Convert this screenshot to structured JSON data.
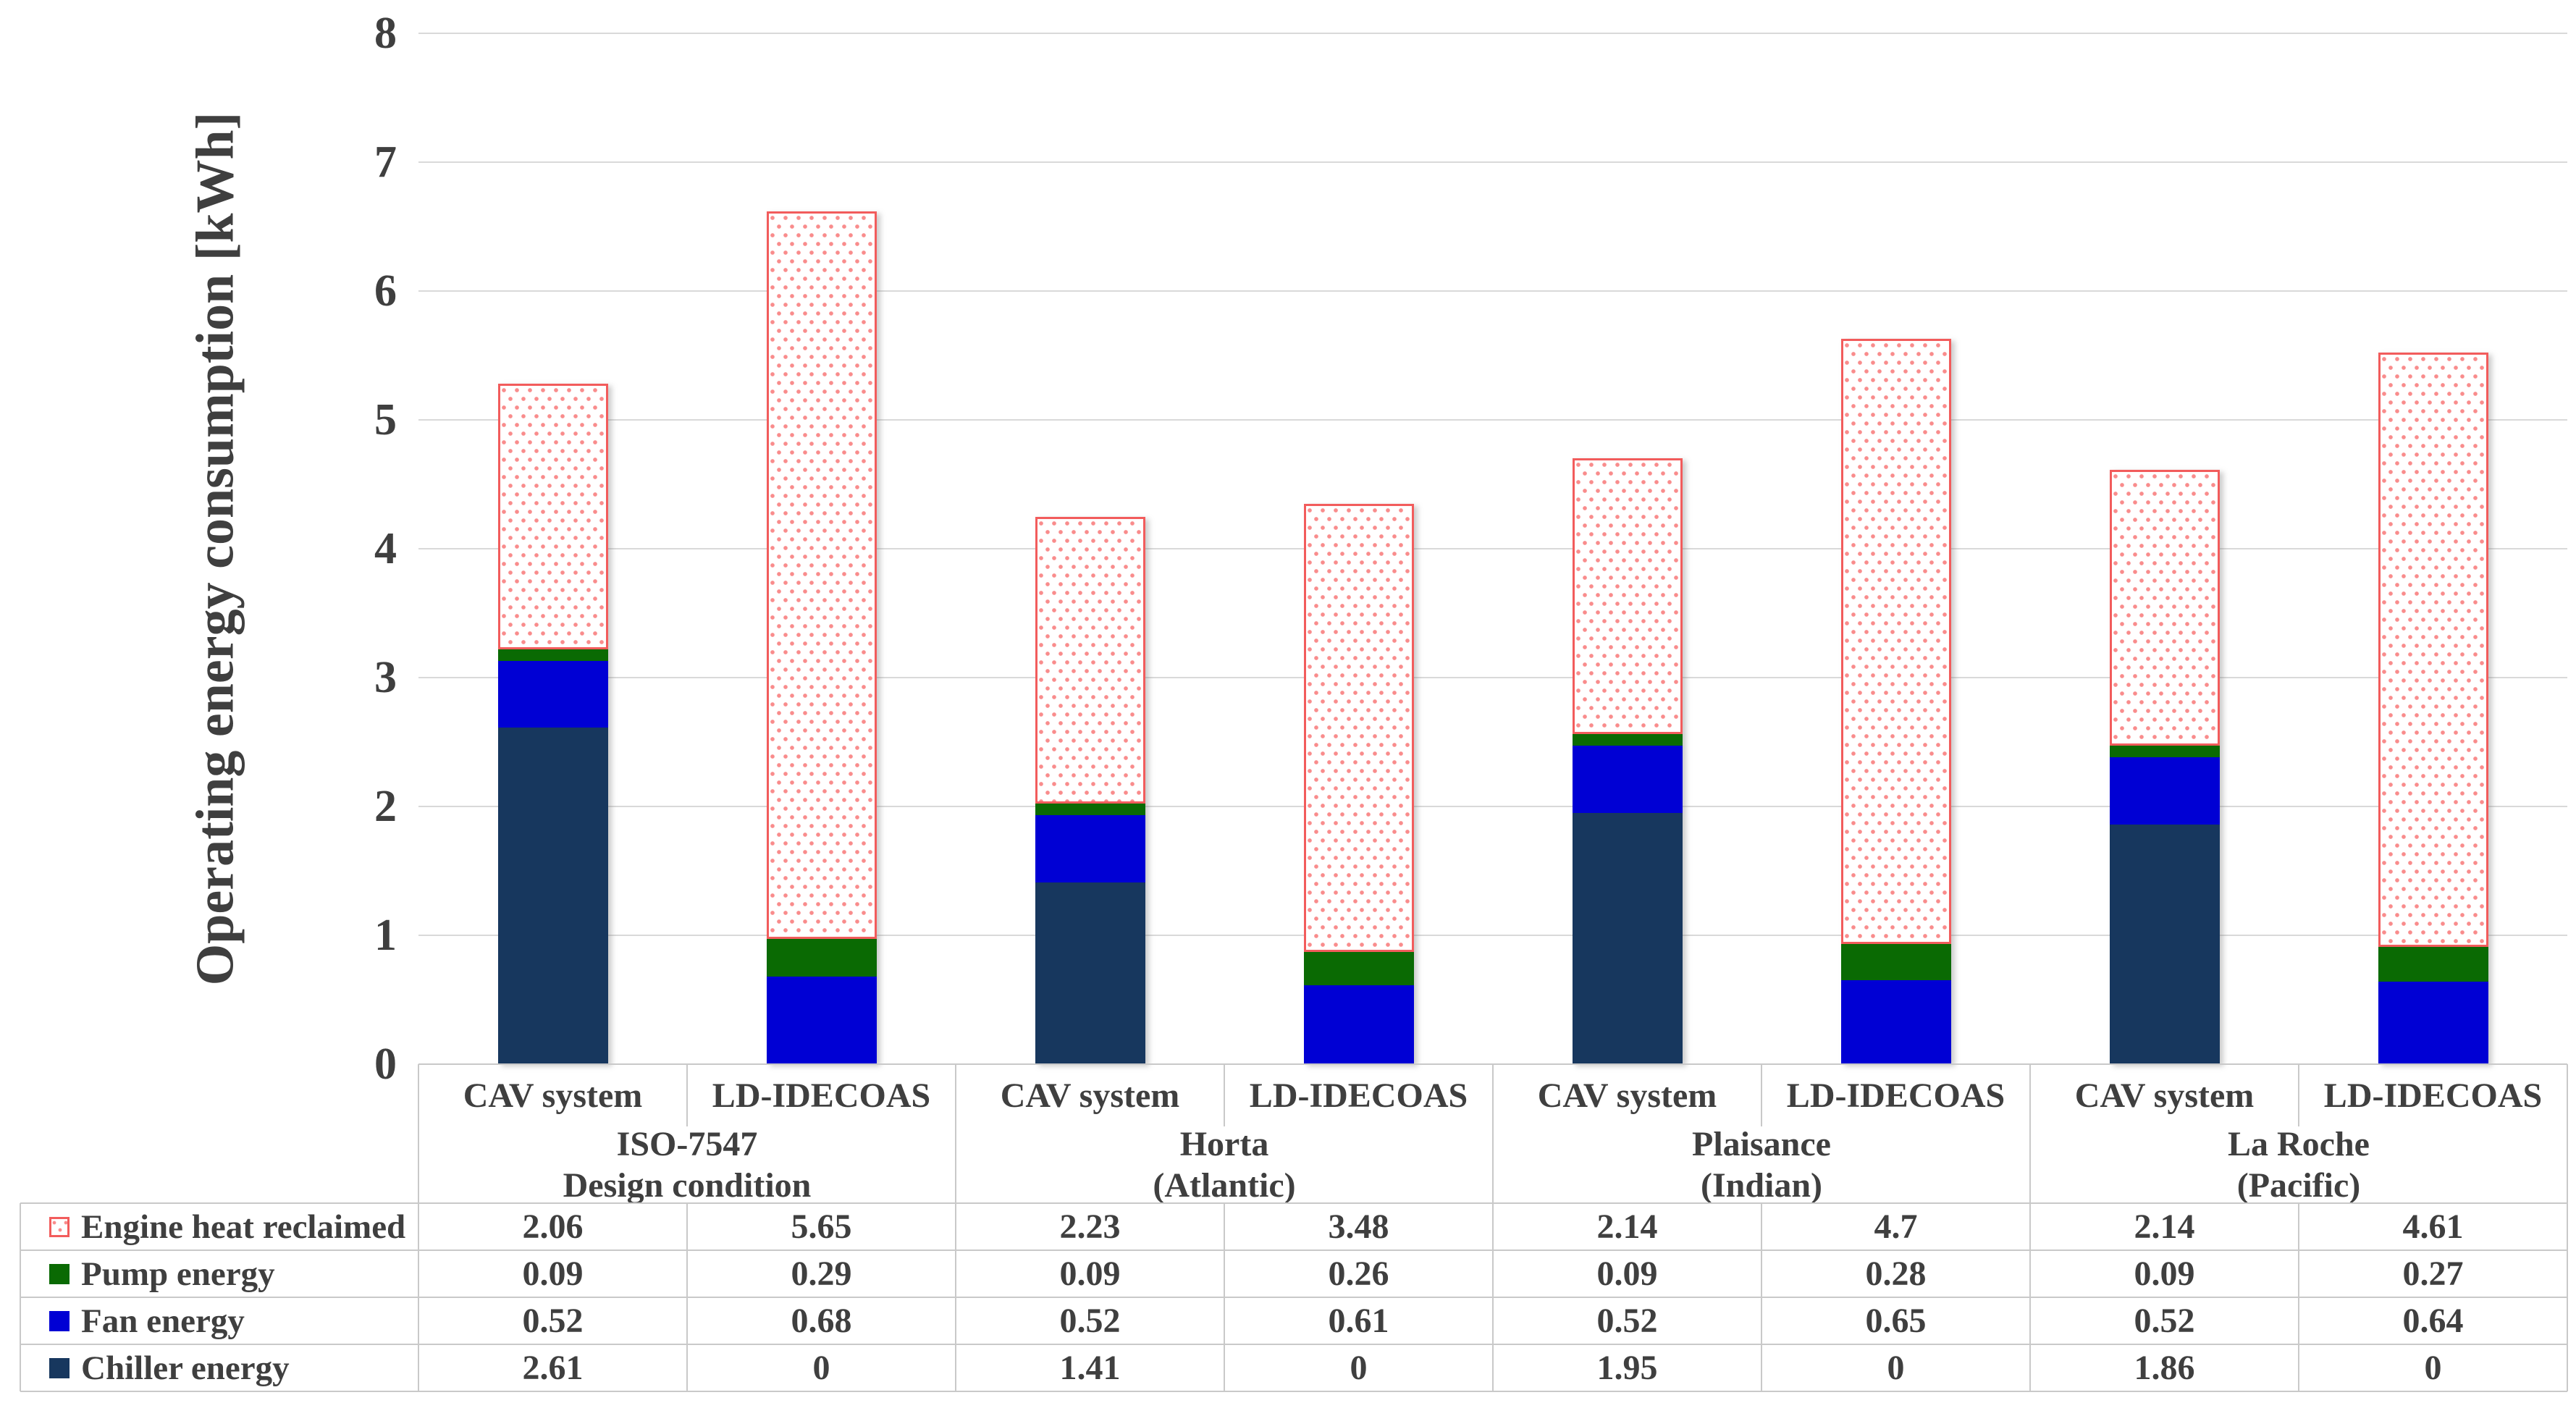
{
  "chart_data": {
    "type": "bar",
    "stacked": true,
    "title": "",
    "ylabel": "Operating energy consumption [kWh]",
    "xlabel": "",
    "ylim": [
      0,
      8
    ],
    "yticks": [
      0,
      1,
      2,
      3,
      4,
      5,
      6,
      7,
      8
    ],
    "grid": "horizontal",
    "legend_position": "data-table-left-column",
    "data_table_shown": true,
    "categories": [
      "CAV system",
      "LD-IDECOAS",
      "CAV system",
      "LD-IDECOAS",
      "CAV system",
      "LD-IDECOAS",
      "CAV system",
      "LD-IDECOAS"
    ],
    "groups": [
      {
        "lines": [
          "ISO-7547",
          "Design condition"
        ]
      },
      {
        "lines": [
          "Horta",
          "(Atlantic)"
        ]
      },
      {
        "lines": [
          "Plaisance",
          "(Indian)"
        ]
      },
      {
        "lines": [
          "La Roche",
          "(Pacific)"
        ]
      }
    ],
    "series": [
      {
        "name": "Engine heat reclaimed",
        "fill": "pattern-red-dots",
        "color": "#F25C5C",
        "dot_color": "#F98C8C",
        "values": [
          2.06,
          5.65,
          2.23,
          3.48,
          2.14,
          4.7,
          2.14,
          4.61
        ]
      },
      {
        "name": "Pump energy",
        "fill": "solid",
        "color": "#0A6A03",
        "values": [
          0.09,
          0.29,
          0.09,
          0.26,
          0.09,
          0.28,
          0.09,
          0.27
        ]
      },
      {
        "name": "Fan energy",
        "fill": "solid",
        "color": "#0000D4",
        "values": [
          0.52,
          0.68,
          0.52,
          0.61,
          0.52,
          0.65,
          0.52,
          0.64
        ]
      },
      {
        "name": "Chiller energy",
        "fill": "solid",
        "color": "#17375E",
        "values": [
          2.61,
          0,
          1.41,
          0,
          1.95,
          0,
          1.86,
          0
        ]
      }
    ],
    "stack_order_bottom_to_top": [
      "Chiller energy",
      "Fan energy",
      "Pump energy",
      "Engine heat reclaimed"
    ]
  },
  "colors": {
    "text": "#3F3F3F",
    "gridline": "#D9D9D9",
    "table_border": "#C9C9C9",
    "background": "#FFFFFF"
  }
}
